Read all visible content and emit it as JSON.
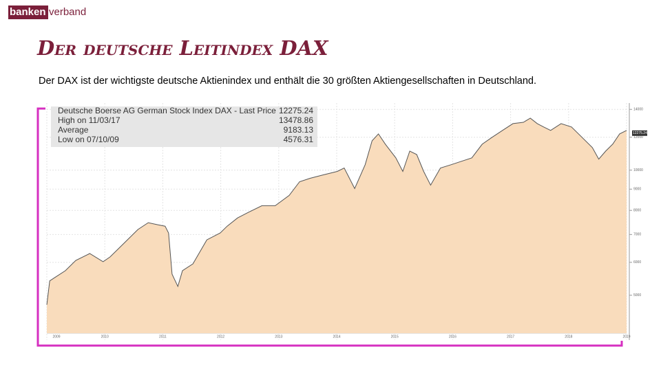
{
  "header": {
    "logo_left": "banken",
    "logo_right": "verband",
    "title": "Der deutsche Leitindex DAX",
    "subtitle": "Der DAX ist der wichtigste deutsche Aktienindex und enthält die 30 größten Aktiengesellschaften in Deutschland."
  },
  "chart_data": {
    "type": "area",
    "legend_rows": [
      {
        "label": "Deutsche Boerse AG German Stock Index DAX - Last Price",
        "value": 12275.24
      },
      {
        "label": "High on 11/03/17",
        "value": 13478.86
      },
      {
        "label": "Average",
        "value": 9183.13
      },
      {
        "label": "Low on 07/10/09",
        "value": 4576.31
      }
    ],
    "x": [
      2009.0,
      2009.05,
      2009.14,
      2009.32,
      2009.5,
      2009.74,
      2009.97,
      2010.09,
      2010.33,
      2010.57,
      2010.75,
      2010.92,
      2011.04,
      2011.1,
      2011.16,
      2011.26,
      2011.34,
      2011.52,
      2011.76,
      2011.99,
      2012.11,
      2012.29,
      2012.47,
      2012.71,
      2012.94,
      2013.18,
      2013.36,
      2013.54,
      2013.77,
      2014.01,
      2014.13,
      2014.31,
      2014.49,
      2014.61,
      2014.72,
      2014.84,
      2015.02,
      2015.14,
      2015.26,
      2015.38,
      2015.5,
      2015.62,
      2015.79,
      2015.97,
      2016.15,
      2016.33,
      2016.51,
      2016.68,
      2016.86,
      2017.04,
      2017.22,
      2017.34,
      2017.46,
      2017.57,
      2017.69,
      2017.87,
      2018.05,
      2018.23,
      2018.41,
      2018.52,
      2018.64,
      2018.76,
      2018.88,
      2019.0
    ],
    "series": [
      {
        "name": "DAX",
        "color": "#555555",
        "fill": "#f9dcbc",
        "values": [
          4742,
          5414,
          5518,
          5729,
          6065,
          6299,
          6021,
          6181,
          6668,
          7195,
          7473,
          7385,
          7330,
          7060,
          5621,
          5251,
          5729,
          5951,
          6795,
          7060,
          7330,
          7672,
          7908,
          8212,
          8212,
          8693,
          9378,
          9558,
          9741,
          9928,
          10118,
          9030,
          10304,
          11767,
          12224,
          11546,
          10702,
          9928,
          11114,
          10905,
          9928,
          9201,
          10118,
          10304,
          10500,
          10702,
          11546,
          11996,
          12460,
          12941,
          13032,
          13335,
          12941,
          12699,
          12460,
          12941,
          12699,
          11996,
          11330,
          10627,
          11114,
          11546,
          12224,
          12460
        ]
      }
    ],
    "xlim": [
      2009,
      2019
    ],
    "xticks": [
      2009,
      2010,
      2011,
      2012,
      2013,
      2014,
      2015,
      2016,
      2017,
      2018,
      2019
    ],
    "ylim": [
      3900,
      14500
    ],
    "yticks": [
      5000,
      6000,
      7000,
      8000,
      9000,
      10000,
      12000,
      14000
    ],
    "log_scale": true,
    "grid": true
  }
}
